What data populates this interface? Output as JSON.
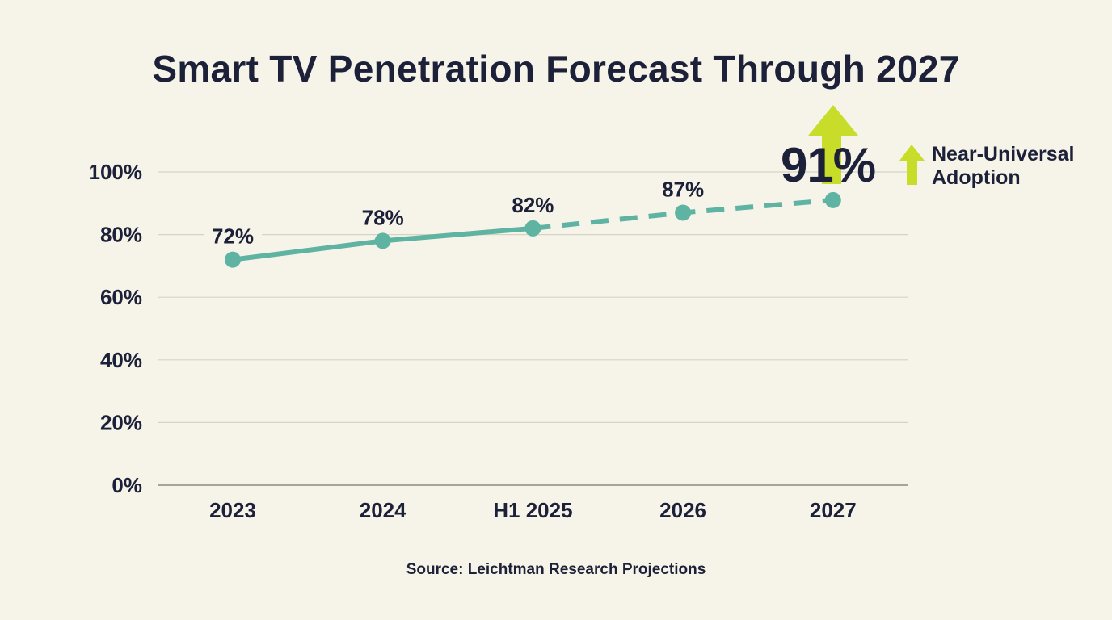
{
  "chart_data": {
    "type": "line",
    "title": "Smart TV Penetration Forecast Through 2027",
    "categories": [
      "2023",
      "2024",
      "H1 2025",
      "2026",
      "2027"
    ],
    "series": [
      {
        "values": [
          72,
          78,
          82,
          87,
          91
        ],
        "labels": [
          "72%",
          "78%",
          "82%",
          "87%",
          "91%"
        ],
        "actual_through": "H1 2025",
        "projected_from": "H1 2025"
      }
    ],
    "ylim": [
      0,
      100
    ],
    "yticks": [
      0,
      20,
      40,
      60,
      80,
      100
    ],
    "ytick_labels": [
      "0%",
      "20%",
      "40%",
      "60%",
      "80%",
      "100%"
    ],
    "grid": true,
    "callout": {
      "value": "91%",
      "text_line1": "Near-Universal",
      "text_line2": "Adoption",
      "icon": "arrow-up-icon"
    },
    "source": "Source: Leichtman Research Projections",
    "colors": {
      "line": "#5fb3a3",
      "text": "#1c2038",
      "accent": "#c8dc2a",
      "grid": "#d6d3c4",
      "background": "#f6f4e9"
    }
  }
}
